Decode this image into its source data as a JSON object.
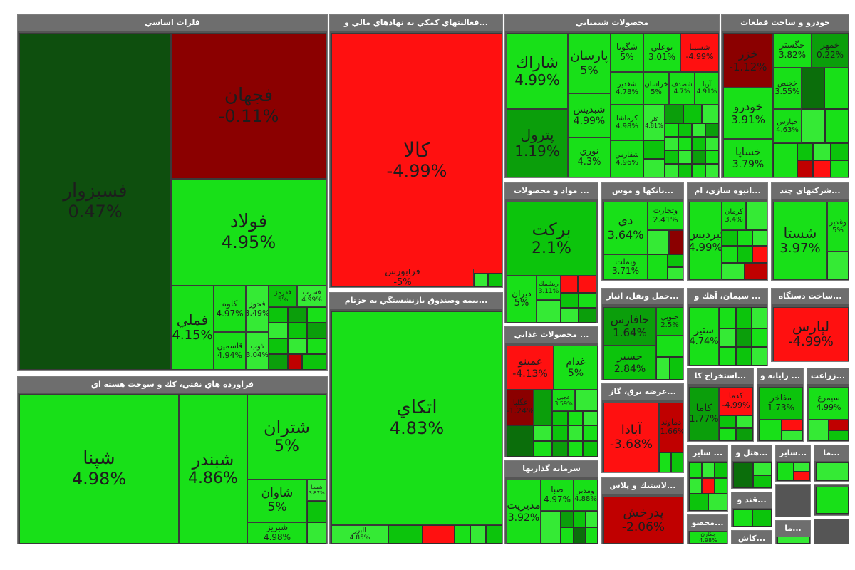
{
  "sectors": {
    "metals": "فلزات اساسي",
    "finance": "...فعاليتهاي كمكي به نهادهاي مالي و",
    "chemical": "محصولات شيميايي",
    "auto": "خودرو و ساخت قطعات",
    "refinery": "فراورده هاي نفتي، كك و سوخت هسته اي",
    "insurance": "...بيمه وصندوق بازنشستگي به جزتام",
    "materials": "... مواد و محصولات",
    "banks": "...بانكها و موس",
    "mass": "...انبوه سازي، ام",
    "multi": "...شركتهاي چند",
    "transport": "...حمل ونقل، انبار",
    "cement": "... سيمان، آهك و",
    "device": "...ساخت دستگاه",
    "food": "... محصولات غذايي",
    "utility": "...عرضه برق، گاز",
    "extraction": "...استخراج كا",
    "computer": "... رايانه و",
    "agri": "...زراعت",
    "investment": "سرمايه گذاريها",
    "plastic": "...لاستيك و پلاس",
    "other1": "... ساير",
    "hotel": "...هتل و",
    "other2": "...ساير",
    "other3": "...ما",
    "sugar": "...قند و",
    "tile": "...كاش",
    "dairy": "...محصو",
    "other4": "...ما"
  },
  "stocks": {
    "fasabzevar": {
      "name": "فسبزوار",
      "pct": "0.47%"
    },
    "fajahan": {
      "name": "فجهان",
      "pct": "-0.11%"
    },
    "foolad": {
      "name": "فولاد",
      "pct": "4.95%"
    },
    "fameli": {
      "name": "فملي",
      "pct": "4.15%"
    },
    "kave": {
      "name": "كاوه",
      "pct": "4.97%"
    },
    "fakhur": {
      "name": "فخوز",
      "pct": "3.49%"
    },
    "faghrm": {
      "name": "فقرمز",
      "pct": "5%"
    },
    "fasrb": {
      "name": "فسرب",
      "pct": "4.99%"
    },
    "kasamin": {
      "name": "قاسمين",
      "pct": "4.94%"
    },
    "zob": {
      "name": "ذوب",
      "pct": "3.04%"
    },
    "kala": {
      "name": "كالا",
      "pct": "-4.99%"
    },
    "faraborse": {
      "name": "فرابورس",
      "pct": "-5%"
    },
    "atkai": {
      "name": "اتكاي",
      "pct": "4.83%"
    },
    "albarz": {
      "name": "البرز",
      "pct": "4.85%"
    },
    "shapna": {
      "name": "شپنا",
      "pct": "4.98%"
    },
    "shabandar": {
      "name": "شبندر",
      "pct": "4.86%"
    },
    "shatran": {
      "name": "شتران",
      "pct": "5%"
    },
    "shavan": {
      "name": "شاوان",
      "pct": "5%"
    },
    "shabriz": {
      "name": "شبريز",
      "pct": "4.98%"
    },
    "shesp": {
      "name": "شسپا",
      "pct": "3.87%"
    },
    "sharak": {
      "name": "شاراك",
      "pct": "4.99%"
    },
    "parsan": {
      "name": "پارسان",
      "pct": "5%"
    },
    "shegooya": {
      "name": "شگويا",
      "pct": "5%"
    },
    "booali": {
      "name": "بوعلي",
      "pct": "3.01%"
    },
    "shesina": {
      "name": "شسينا",
      "pct": "-4.99%"
    },
    "petrol": {
      "name": "پترول",
      "pct": "1.19%"
    },
    "shebdis": {
      "name": "شبديس",
      "pct": "4.99%"
    },
    "noori": {
      "name": "نوري",
      "pct": "4.3%"
    },
    "shaidar": {
      "name": "شغدير",
      "pct": "4.78%"
    },
    "khorasan": {
      "name": "خراسان",
      "pct": "5%"
    },
    "shesadaf": {
      "name": "شصدف",
      "pct": "4.7%"
    },
    "arya": {
      "name": "آريا",
      "pct": "4.91%"
    },
    "kermasha": {
      "name": "كرماشا",
      "pct": "4.98%"
    },
    "kela": {
      "name": "كلر",
      "pct": "4.81%"
    },
    "shearas": {
      "name": "شفارس",
      "pct": "4.96%"
    },
    "khazar": {
      "name": "خزر",
      "pct": "-1.12%"
    },
    "khegostar": {
      "name": "خگستر",
      "pct": "3.82%"
    },
    "khamehr": {
      "name": "خمهر",
      "pct": "0.22%"
    },
    "khodro": {
      "name": "خودرو",
      "pct": "3.91%"
    },
    "khesapa": {
      "name": "خساپا",
      "pct": "3.79%"
    },
    "khchnesi": {
      "name": "خچنص",
      "pct": "3.55%"
    },
    "khpars": {
      "name": "خپارس",
      "pct": "4.63%"
    },
    "barakat": {
      "name": "بركت",
      "pct": "2.1%"
    },
    "dirian": {
      "name": "ديران",
      "pct": "5%"
    },
    "rishmak": {
      "name": "ريشمك",
      "pct": "3.11%"
    },
    "dey": {
      "name": "دي",
      "pct": "3.64%"
    },
    "vatejarat": {
      "name": "وتجارت",
      "pct": "2.41%"
    },
    "vabemellat": {
      "name": "وبملت",
      "pct": "3.71%"
    },
    "tebardis": {
      "name": "ثبرديس",
      "pct": "4.99%"
    },
    "kerman": {
      "name": "كرمان",
      "pct": "3.4%"
    },
    "shasta": {
      "name": "شستا",
      "pct": "3.97%"
    },
    "vaghadir": {
      "name": "وغدير",
      "pct": "5%"
    },
    "hafars": {
      "name": "حافارس",
      "pct": "1.64%"
    },
    "hasir": {
      "name": "حسير",
      "pct": "2.84%"
    },
    "hnoor": {
      "name": "حنوبل",
      "pct": "2.5%"
    },
    "sanir": {
      "name": "ستير",
      "pct": "4.74%"
    },
    "lapars": {
      "name": "لپارس",
      "pct": "-4.99%"
    },
    "amino": {
      "name": "غمينو",
      "pct": "-4.13%"
    },
    "adam": {
      "name": "غدام",
      "pct": "5%"
    },
    "ghaltoos": {
      "name": "غگلپا",
      "pct": "-1.24%"
    },
    "gh_ajabi": {
      "name": "عجبي",
      "pct": "3.59%"
    },
    "abada": {
      "name": "آبادا",
      "pct": "-3.68%"
    },
    "damavand": {
      "name": "دماوند",
      "pct": "-1.66%"
    },
    "kama": {
      "name": "كاما",
      "pct": "1.77%"
    },
    "kadama": {
      "name": "كدما",
      "pct": "-4.99%"
    },
    "mafakher": {
      "name": "مفاخر",
      "pct": "1.73%"
    },
    "semorgh": {
      "name": "سيمرغ",
      "pct": "4.99%"
    },
    "modiriat": {
      "name": "مديريت",
      "pct": "3.92%"
    },
    "saba": {
      "name": "صبا",
      "pct": "4.97%"
    },
    "vamadir": {
      "name": "ومدير",
      "pct": "4.88%"
    },
    "padarkhash": {
      "name": "پدرخش",
      "pct": "-2.06%"
    },
    "jkaran": {
      "name": "جكارن",
      "pct": "4.98%"
    }
  },
  "colors": {
    "green_light": "#18e018",
    "green_dark": "#0e4f0e",
    "red": "#ff1010",
    "red_dark": "#8b0000",
    "header_gray": "#6e6e6e"
  }
}
